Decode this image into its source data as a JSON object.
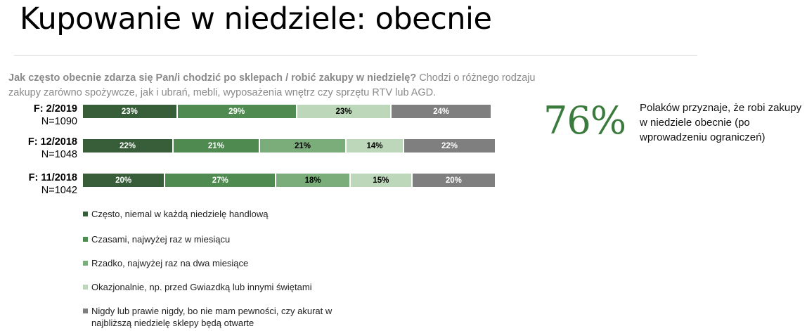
{
  "slide": {
    "title": "Kupowanie w niedziele: obecnie",
    "question_bold": "Jak często obecnie zdarza się Pan/i chodzić po sklepach / robić zakupy w niedzielę?",
    "question_rest": " Chodzi o różnego rodzaju zakupy zarówno spożywcze, jak i ubrań, mebli, wyposażenia wnętrz czy sprzętu RTV lub AGD.",
    "highlight_value": "76%",
    "highlight_text": "Polaków przyznaje, że robi zakupy w niedziele obecnie (po wprowadzeniu ograniczeń)"
  },
  "chart_data": {
    "type": "bar",
    "orientation": "horizontal-stacked-100",
    "categories": [
      {
        "period": "F: 2/2019",
        "n": "N=1090"
      },
      {
        "period": "F: 12/2018",
        "n": "N=1048"
      },
      {
        "period": "F: 11/2018",
        "n": "N=1042"
      }
    ],
    "series": [
      {
        "name": "Często, niemal w każdą niedzielę handlową",
        "color": "#375e38",
        "text_color": "#ffffff",
        "values": [
          23,
          22,
          20
        ]
      },
      {
        "name": "Czasami, najwyżej raz w miesiącu",
        "color": "#4f8a50",
        "text_color": "#ffffff",
        "values": [
          29,
          21,
          27
        ]
      },
      {
        "name": "Rzadko, najwyżej raz na dwa miesiące",
        "color": "#7aad79",
        "text_color": "#000000",
        "values": [
          0,
          21,
          18
        ]
      },
      {
        "name": "Okazjonalnie, np. przed Gwiazdką lub innymi świętami",
        "color": "#bcd7b9",
        "text_color": "#000000",
        "values": [
          23,
          14,
          15
        ]
      },
      {
        "name": "Nigdy lub prawie nigdy, bo nie mam pewności, czy akurat w najbliższą niedzielę sklepy będą otwarte",
        "color": "#7f7f7f",
        "text_color": "#ffffff",
        "values": [
          24,
          22,
          20
        ]
      }
    ],
    "unit": "%",
    "legend_position": "bottom-left"
  }
}
